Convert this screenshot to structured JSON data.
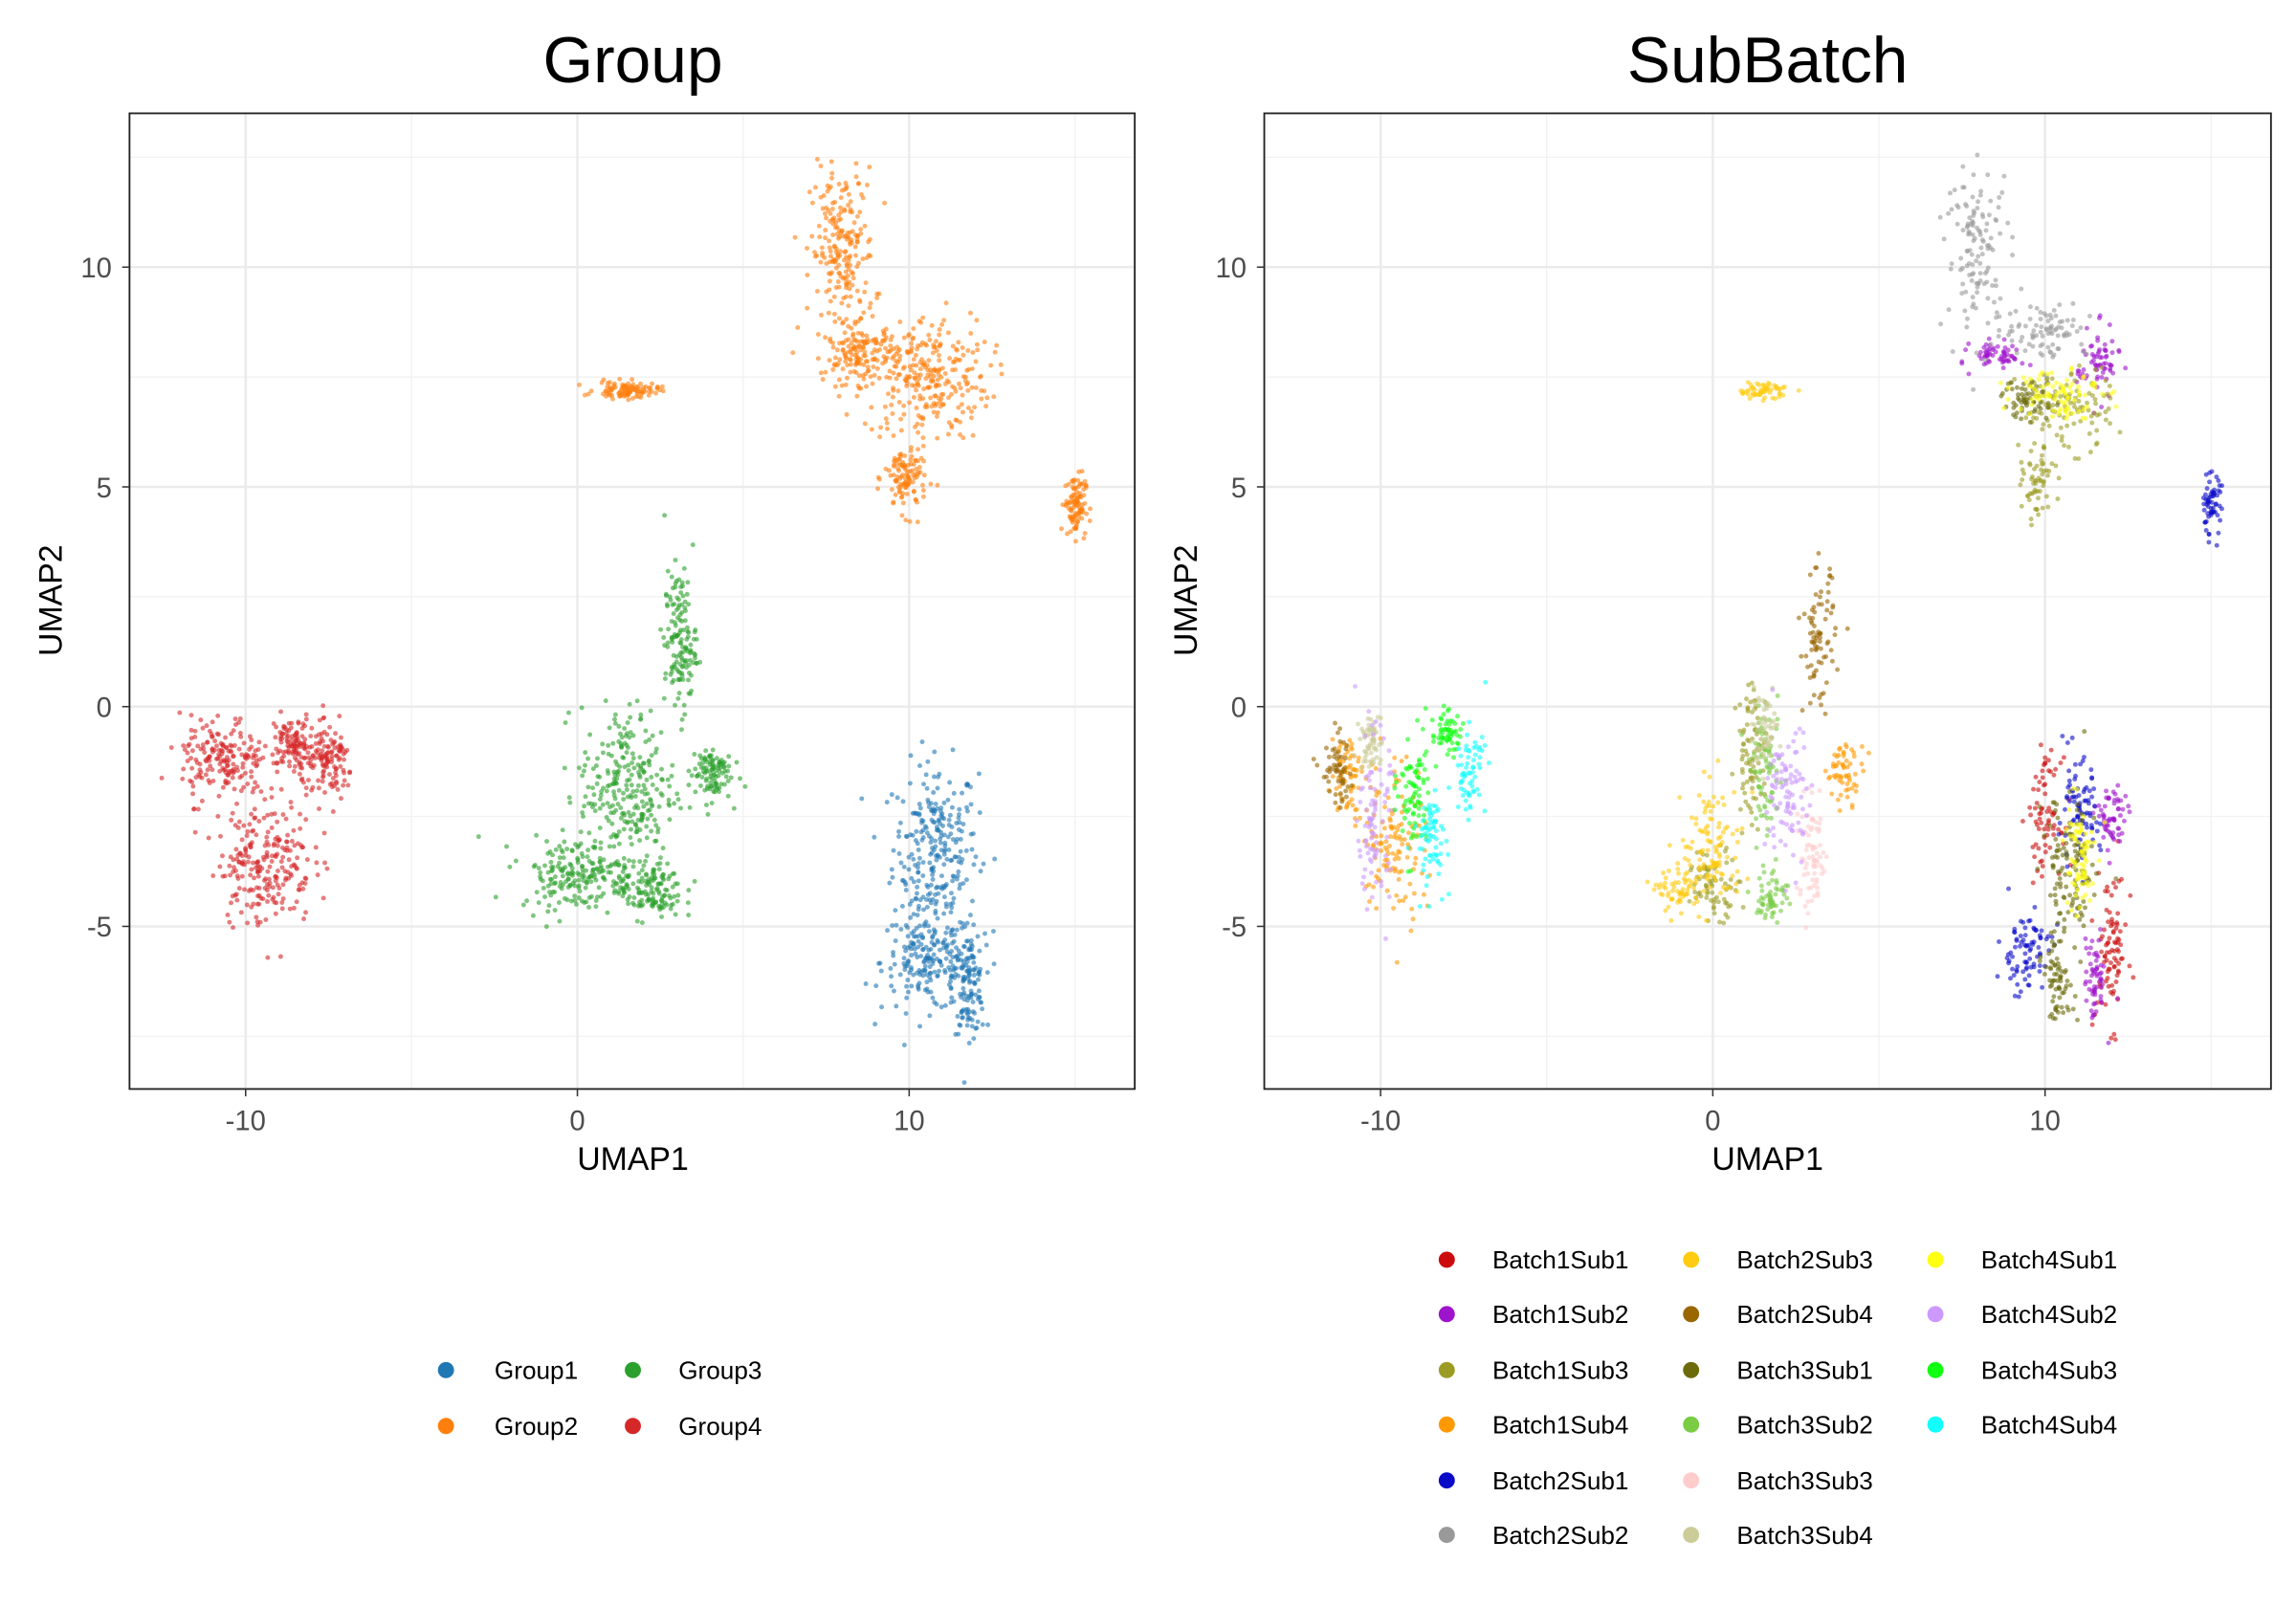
{
  "chart_data": [
    {
      "type": "scatter",
      "title": "Group",
      "xlabel": "UMAP1",
      "ylabel": "UMAP2",
      "xlim": [
        -13.5,
        16.8
      ],
      "ylim": [
        -8.7,
        13.5
      ],
      "xticks": [
        -10,
        0,
        10
      ],
      "yticks": [
        10,
        5,
        0,
        -5
      ],
      "xtick_labels": [
        "-10",
        "0",
        "10"
      ],
      "ytick_labels": [
        "10",
        "5",
        "0",
        "-5"
      ],
      "grid": true,
      "legend": "bottom",
      "series": [
        {
          "name": "Group1",
          "color": "#1F77B4",
          "clusters": [
            {
              "center": [
                10.8,
                -3.2
              ],
              "spread": [
                0.8,
                1.2
              ]
            },
            {
              "center": [
                10.6,
                -5.8
              ],
              "spread": [
                0.9,
                0.7
              ]
            },
            {
              "center": [
                11.8,
                -6.3
              ],
              "spread": [
                0.3,
                0.7
              ]
            }
          ]
        },
        {
          "name": "Group2",
          "color": "#FF7F0E",
          "clusters": [
            {
              "center": [
                10.5,
                7.5
              ],
              "spread": [
                1.2,
                0.9
              ]
            },
            {
              "center": [
                8.0,
                10.3
              ],
              "spread": [
                0.6,
                1.2
              ]
            },
            {
              "center": [
                8.6,
                8.0
              ],
              "spread": [
                0.7,
                0.4
              ]
            },
            {
              "center": [
                9.9,
                5.2
              ],
              "spread": [
                0.4,
                0.5
              ]
            },
            {
              "center": [
                1.5,
                7.2
              ],
              "spread": [
                0.6,
                0.12
              ]
            },
            {
              "center": [
                15.0,
                4.6
              ],
              "spread": [
                0.2,
                0.45
              ]
            }
          ]
        },
        {
          "name": "Group3",
          "color": "#2CA02C",
          "clusters": [
            {
              "center": [
                1.5,
                -1.9
              ],
              "spread": [
                0.9,
                1.2
              ]
            },
            {
              "center": [
                0.0,
                -3.8
              ],
              "spread": [
                1.1,
                0.5
              ]
            },
            {
              "center": [
                3.1,
                1.5
              ],
              "spread": [
                0.3,
                1.0
              ]
            },
            {
              "center": [
                4.0,
                -1.5
              ],
              "spread": [
                0.4,
                0.4
              ]
            },
            {
              "center": [
                2.2,
                -4.2
              ],
              "spread": [
                0.6,
                0.4
              ]
            }
          ]
        },
        {
          "name": "Group4",
          "color": "#D62728",
          "clusters": [
            {
              "center": [
                -9.4,
                -3.5
              ],
              "spread": [
                0.9,
                0.9
              ]
            },
            {
              "center": [
                -10.7,
                -1.2
              ],
              "spread": [
                0.8,
                0.6
              ]
            },
            {
              "center": [
                -7.5,
                -1.3
              ],
              "spread": [
                0.5,
                0.5
              ]
            },
            {
              "center": [
                -8.6,
                -0.8
              ],
              "spread": [
                0.4,
                0.4
              ]
            }
          ]
        }
      ]
    },
    {
      "type": "scatter",
      "title": "SubBatch",
      "xlabel": "UMAP1",
      "ylabel": "UMAP2",
      "xlim": [
        -13.5,
        16.8
      ],
      "ylim": [
        -8.7,
        13.5
      ],
      "xticks": [
        -10,
        0,
        10
      ],
      "yticks": [
        10,
        5,
        0,
        -5
      ],
      "xtick_labels": [
        "-10",
        "0",
        "10"
      ],
      "ytick_labels": [
        "10",
        "5",
        "0",
        "-5"
      ],
      "grid": true,
      "legend": "bottom",
      "series": [
        {
          "name": "Batch1Sub1",
          "color": "#CC0C0C",
          "clusters": [
            {
              "center": [
                10.0,
                -2.5
              ],
              "spread": [
                0.3,
                0.8
              ]
            },
            {
              "center": [
                12.0,
                -5.5
              ],
              "spread": [
                0.3,
                1.1
              ]
            }
          ]
        },
        {
          "name": "Batch1Sub2",
          "color": "#9E13CC",
          "clusters": [
            {
              "center": [
                12.0,
                -2.6
              ],
              "spread": [
                0.3,
                0.5
              ]
            },
            {
              "center": [
                11.5,
                -6.2
              ],
              "spread": [
                0.2,
                0.6
              ]
            },
            {
              "center": [
                8.6,
                8.0
              ],
              "spread": [
                0.5,
                0.2
              ]
            },
            {
              "center": [
                11.6,
                7.8
              ],
              "spread": [
                0.4,
                0.5
              ]
            }
          ]
        },
        {
          "name": "Batch1Sub3",
          "color": "#9C9C24",
          "clusters": [
            {
              "center": [
                10.6,
                6.8
              ],
              "spread": [
                0.9,
                0.6
              ]
            },
            {
              "center": [
                9.8,
                5.0
              ],
              "spread": [
                0.3,
                0.5
              ]
            },
            {
              "center": [
                0.0,
                -4.0
              ],
              "spread": [
                0.5,
                0.5
              ]
            },
            {
              "center": [
                1.2,
                -1.0
              ],
              "spread": [
                0.3,
                1.0
              ]
            }
          ]
        },
        {
          "name": "Batch1Sub4",
          "color": "#FF9900",
          "clusters": [
            {
              "center": [
                4.0,
                -1.5
              ],
              "spread": [
                0.35,
                0.4
              ]
            },
            {
              "center": [
                -9.6,
                -3.0
              ],
              "spread": [
                0.6,
                1.2
              ]
            },
            {
              "center": [
                -11.0,
                -1.5
              ],
              "spread": [
                0.3,
                0.6
              ]
            }
          ]
        },
        {
          "name": "Batch2Sub1",
          "color": "#0A0AC9",
          "clusters": [
            {
              "center": [
                9.4,
                -5.6
              ],
              "spread": [
                0.5,
                0.6
              ]
            },
            {
              "center": [
                11.0,
                -2.5
              ],
              "spread": [
                0.4,
                0.8
              ]
            },
            {
              "center": [
                15.0,
                4.6
              ],
              "spread": [
                0.2,
                0.45
              ]
            }
          ]
        },
        {
          "name": "Batch2Sub2",
          "color": "#999999",
          "clusters": [
            {
              "center": [
                8.0,
                10.4
              ],
              "spread": [
                0.6,
                1.2
              ]
            },
            {
              "center": [
                10.0,
                8.6
              ],
              "spread": [
                0.8,
                0.4
              ]
            }
          ]
        },
        {
          "name": "Batch2Sub3",
          "color": "#FFCC11",
          "clusters": [
            {
              "center": [
                0.0,
                -3.2
              ],
              "spread": [
                0.6,
                0.9
              ]
            },
            {
              "center": [
                -1.0,
                -4.2
              ],
              "spread": [
                0.4,
                0.3
              ]
            },
            {
              "center": [
                1.5,
                7.2
              ],
              "spread": [
                0.5,
                0.12
              ]
            }
          ]
        },
        {
          "name": "Batch2Sub4",
          "color": "#996600",
          "clusters": [
            {
              "center": [
                3.2,
                1.5
              ],
              "spread": [
                0.3,
                1.0
              ]
            },
            {
              "center": [
                -11.3,
                -1.5
              ],
              "spread": [
                0.3,
                0.5
              ]
            }
          ]
        },
        {
          "name": "Batch3Sub1",
          "color": "#6B6B0A",
          "clusters": [
            {
              "center": [
                10.7,
                -4.0
              ],
              "spread": [
                0.5,
                1.3
              ]
            },
            {
              "center": [
                10.4,
                -6.3
              ],
              "spread": [
                0.3,
                0.5
              ]
            },
            {
              "center": [
                9.5,
                7.0
              ],
              "spread": [
                0.5,
                0.3
              ]
            }
          ]
        },
        {
          "name": "Batch3Sub2",
          "color": "#7ACC44",
          "clusters": [
            {
              "center": [
                1.8,
                -4.3
              ],
              "spread": [
                0.3,
                0.4
              ]
            },
            {
              "center": [
                1.6,
                -1.5
              ],
              "spread": [
                0.3,
                0.9
              ]
            }
          ]
        },
        {
          "name": "Batch3Sub3",
          "color": "#FFCCCC",
          "clusters": [
            {
              "center": [
                3.0,
                -3.5
              ],
              "spread": [
                0.3,
                0.8
              ]
            }
          ]
        },
        {
          "name": "Batch3Sub4",
          "color": "#CCCC99",
          "clusters": [
            {
              "center": [
                -10.3,
                -0.8
              ],
              "spread": [
                0.2,
                0.4
              ]
            },
            {
              "center": [
                1.5,
                -0.5
              ],
              "spread": [
                0.3,
                0.5
              ]
            }
          ]
        },
        {
          "name": "Batch4Sub1",
          "color": "#FFFF11",
          "clusters": [
            {
              "center": [
                10.4,
                7.2
              ],
              "spread": [
                0.8,
                0.4
              ]
            },
            {
              "center": [
                11.0,
                -3.5
              ],
              "spread": [
                0.3,
                0.9
              ]
            }
          ]
        },
        {
          "name": "Batch4Sub2",
          "color": "#CC99FF",
          "clusters": [
            {
              "center": [
                2.3,
                -2.0
              ],
              "spread": [
                0.4,
                1.0
              ]
            },
            {
              "center": [
                -10.2,
                -2.6
              ],
              "spread": [
                0.3,
                1.2
              ]
            }
          ]
        },
        {
          "name": "Batch4Sub3",
          "color": "#11FF11",
          "clusters": [
            {
              "center": [
                -9.0,
                -2.0
              ],
              "spread": [
                0.3,
                0.9
              ]
            },
            {
              "center": [
                -8.0,
                -0.6
              ],
              "spread": [
                0.3,
                0.3
              ]
            }
          ]
        },
        {
          "name": "Batch4Sub4",
          "color": "#11FFFF",
          "clusters": [
            {
              "center": [
                -7.3,
                -1.5
              ],
              "spread": [
                0.3,
                0.6
              ]
            },
            {
              "center": [
                -8.5,
                -3.0
              ],
              "spread": [
                0.3,
                0.7
              ]
            }
          ]
        }
      ]
    }
  ]
}
